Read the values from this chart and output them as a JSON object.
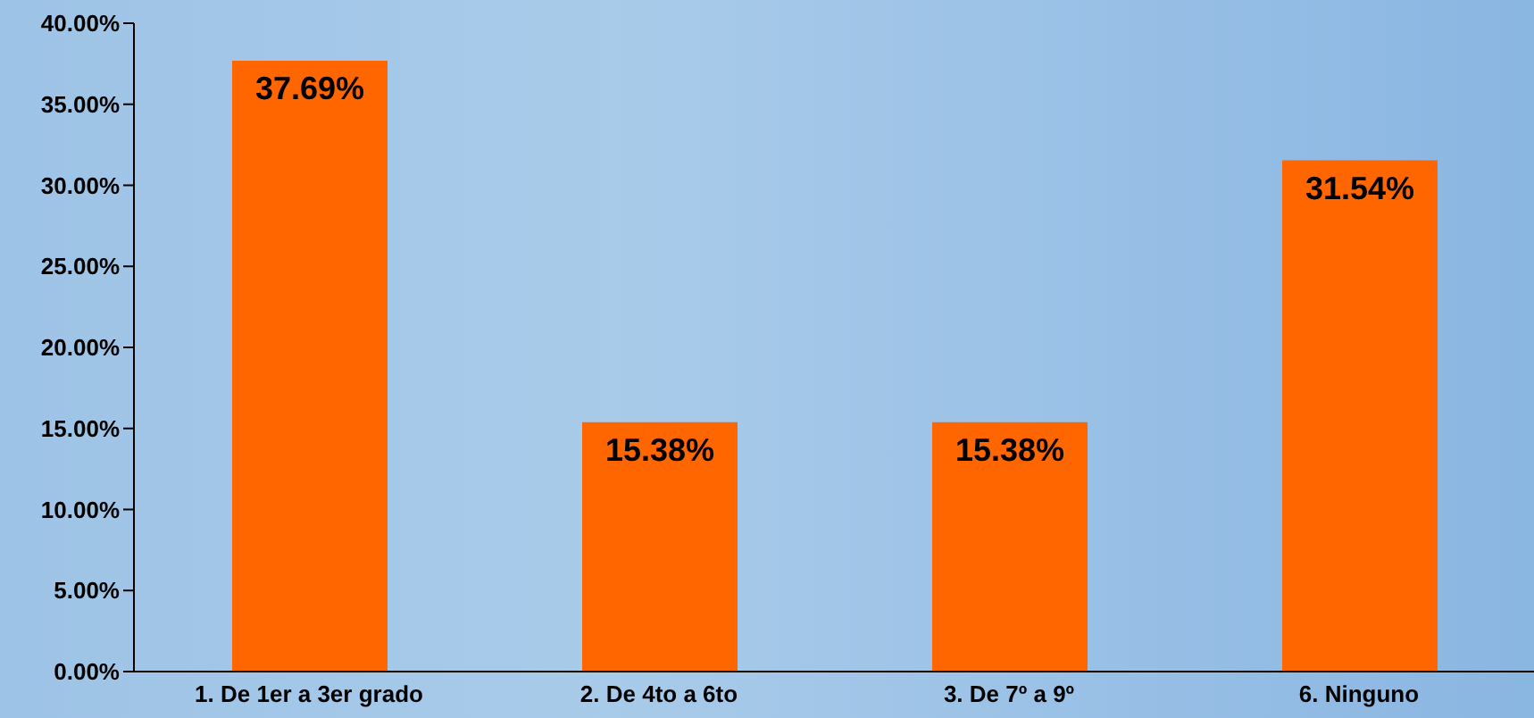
{
  "chart_data": {
    "type": "bar",
    "categories": [
      "1. De 1er a 3er grado",
      "2. De 4to a 6to",
      "3. De 7º  a 9º",
      "6. Ninguno"
    ],
    "values": [
      37.69,
      15.38,
      15.38,
      31.54
    ],
    "value_labels": [
      "37.69%",
      "15.38%",
      "15.38%",
      "31.54%"
    ],
    "color": "#ff6600",
    "ylim": [
      0,
      40
    ],
    "yticks": [
      {
        "value": 0,
        "label": "0.00%"
      },
      {
        "value": 5,
        "label": "5.00%"
      },
      {
        "value": 10,
        "label": "10.00%"
      },
      {
        "value": 15,
        "label": "15.00%"
      },
      {
        "value": 20,
        "label": "20.00%"
      },
      {
        "value": 25,
        "label": "25.00%"
      },
      {
        "value": 30,
        "label": "30.00%"
      },
      {
        "value": 35,
        "label": "35.00%"
      },
      {
        "value": 40,
        "label": "40.00%"
      }
    ],
    "grid": false,
    "legend": false
  }
}
